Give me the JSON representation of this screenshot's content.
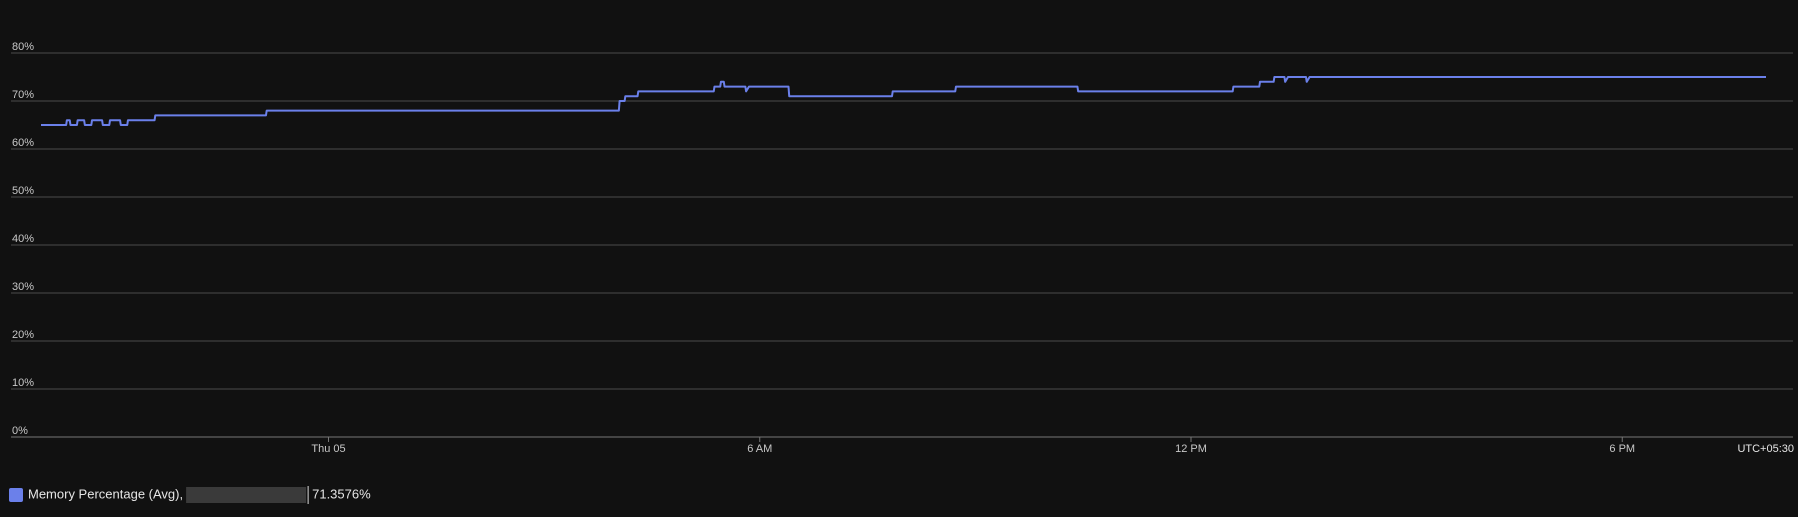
{
  "chart_data": {
    "type": "line",
    "x": [
      0,
      0.35,
      0.36,
      0.4,
      0.41,
      0.5,
      0.51,
      0.6,
      0.61,
      0.7,
      0.71,
      0.85,
      0.86,
      0.95,
      0.96,
      1.1,
      1.11,
      1.2,
      1.21,
      1.58,
      1.59,
      3.13,
      3.14,
      8.04,
      8.05,
      8.12,
      8.13,
      8.3,
      8.31,
      9.36,
      9.37,
      9.45,
      9.46,
      9.5,
      9.51,
      9.8,
      9.81,
      9.85,
      10.4,
      10.41,
      11.84,
      11.85,
      12.72,
      12.73,
      14.42,
      14.43,
      16.58,
      16.59,
      16.95,
      16.96,
      17.15,
      17.16,
      17.3,
      17.31,
      17.35,
      17.6,
      17.61,
      17.65,
      24
    ],
    "series": [
      {
        "name": "Memory Percentage (Avg),",
        "color": "#6b80ea",
        "values": [
          65,
          65,
          66,
          66,
          65,
          65,
          66,
          66,
          65,
          65,
          66,
          66,
          65,
          65,
          66,
          66,
          65,
          65,
          66,
          66,
          67,
          67,
          68,
          68,
          70,
          70,
          71,
          71,
          72,
          72,
          73,
          73,
          74,
          74,
          73,
          73,
          72,
          73,
          73,
          71,
          71,
          72,
          72,
          73,
          73,
          72,
          72,
          73,
          73,
          74,
          74,
          75,
          75,
          74,
          75,
          75,
          74,
          75,
          75
        ],
        "summary": "71.3576%"
      }
    ],
    "xlim": [
      0,
      24
    ],
    "xticks": [
      {
        "value": 4,
        "label": "Thu 05"
      },
      {
        "value": 10,
        "label": "6 AM"
      },
      {
        "value": 16,
        "label": "12 PM"
      },
      {
        "value": 22,
        "label": "6 PM"
      }
    ],
    "timezone": "UTC+05:30",
    "ylim": [
      0,
      80
    ],
    "yticks": [
      {
        "value": 0,
        "label": "0%"
      },
      {
        "value": 10,
        "label": "10%"
      },
      {
        "value": 20,
        "label": "20%"
      },
      {
        "value": 30,
        "label": "30%"
      },
      {
        "value": 40,
        "label": "40%"
      },
      {
        "value": 50,
        "label": "50%"
      },
      {
        "value": 60,
        "label": "60%"
      },
      {
        "value": 70,
        "label": "70%"
      },
      {
        "value": 80,
        "label": "80%"
      }
    ],
    "grid": true
  }
}
